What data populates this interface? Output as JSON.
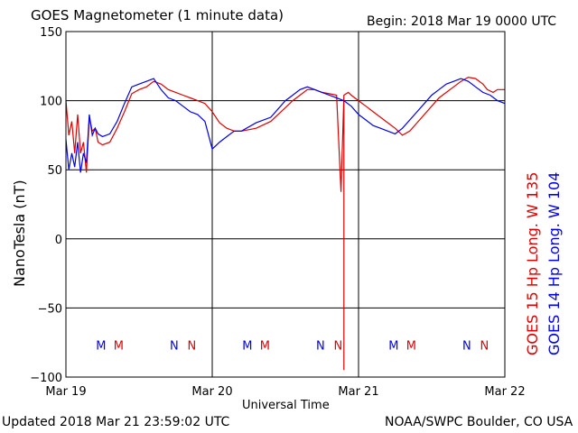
{
  "title": "GOES Magnetometer (1 minute data)",
  "begin": "Begin:  2018 Mar 19 0000 UTC",
  "updated": "Updated 2018 Mar 21 23:59:02 UTC",
  "credit": "NOAA/SWPC Boulder, CO USA",
  "chart_data": {
    "type": "line",
    "title": "GOES Magnetometer (1 minute data)",
    "xlabel": "Universal Time",
    "ylabel": "NanoTesla (nT)",
    "xlim": [
      0,
      3
    ],
    "ylim": [
      -100,
      150
    ],
    "yticks": [
      -100,
      -50,
      0,
      50,
      100,
      150
    ],
    "ytick_labels": [
      "−100",
      "−50",
      "0",
      "50",
      "100",
      "150"
    ],
    "xtick_labels": [
      "Mar 19",
      "Mar 20",
      "Mar 21",
      "Mar 22"
    ],
    "grid": true,
    "series": [
      {
        "name": "GOES 15 Hp  Long. W 135",
        "color": "#e00000",
        "x": [
          0,
          0.02,
          0.04,
          0.06,
          0.08,
          0.1,
          0.12,
          0.14,
          0.16,
          0.18,
          0.2,
          0.22,
          0.25,
          0.3,
          0.35,
          0.4,
          0.45,
          0.5,
          0.55,
          0.6,
          0.65,
          0.7,
          0.75,
          0.8,
          0.85,
          0.9,
          0.95,
          1.0,
          1.05,
          1.1,
          1.15,
          1.2,
          1.3,
          1.4,
          1.5,
          1.55,
          1.6,
          1.65,
          1.7,
          1.75,
          1.8,
          1.85,
          1.88,
          1.9,
          1.9,
          1.9,
          1.9,
          1.93,
          1.95,
          2.0,
          2.05,
          2.1,
          2.15,
          2.2,
          2.25,
          2.3,
          2.35,
          2.4,
          2.45,
          2.5,
          2.55,
          2.6,
          2.65,
          2.7,
          2.75,
          2.8,
          2.85,
          2.88,
          2.92,
          2.95,
          3.0
        ],
        "y": [
          100,
          75,
          85,
          62,
          90,
          62,
          70,
          48,
          88,
          78,
          80,
          70,
          68,
          70,
          80,
          92,
          105,
          108,
          110,
          114,
          112,
          108,
          106,
          104,
          102,
          100,
          98,
          92,
          84,
          80,
          78,
          78,
          80,
          85,
          95,
          100,
          104,
          108,
          108,
          106,
          105,
          104,
          34,
          104,
          -95,
          -68,
          104,
          106,
          104,
          100,
          96,
          92,
          88,
          84,
          80,
          75,
          78,
          84,
          90,
          96,
          102,
          106,
          110,
          114,
          117,
          116,
          112,
          108,
          106,
          108,
          108
        ]
      },
      {
        "name": "GOES 14 Hp  Long. W 104",
        "color": "#0000ee",
        "x": [
          0,
          0.02,
          0.04,
          0.06,
          0.08,
          0.1,
          0.12,
          0.14,
          0.16,
          0.18,
          0.2,
          0.22,
          0.25,
          0.3,
          0.35,
          0.4,
          0.45,
          0.5,
          0.55,
          0.6,
          0.65,
          0.7,
          0.75,
          0.8,
          0.85,
          0.9,
          0.95,
          1.0,
          1.05,
          1.1,
          1.15,
          1.2,
          1.3,
          1.4,
          1.5,
          1.55,
          1.6,
          1.65,
          1.7,
          1.75,
          1.8,
          1.85,
          1.9,
          1.95,
          2.0,
          2.05,
          2.1,
          2.15,
          2.2,
          2.25,
          2.3,
          2.35,
          2.4,
          2.45,
          2.5,
          2.55,
          2.6,
          2.65,
          2.7,
          2.75,
          2.8,
          2.85,
          2.9,
          2.95,
          3.0
        ],
        "y": [
          72,
          50,
          62,
          52,
          70,
          48,
          62,
          55,
          90,
          75,
          80,
          76,
          74,
          76,
          85,
          98,
          110,
          112,
          114,
          116,
          108,
          102,
          100,
          96,
          92,
          90,
          85,
          65,
          70,
          74,
          78,
          78,
          84,
          88,
          100,
          104,
          108,
          110,
          108,
          106,
          104,
          102,
          100,
          96,
          90,
          86,
          82,
          80,
          78,
          76,
          80,
          86,
          92,
          98,
          104,
          108,
          112,
          114,
          116,
          114,
          110,
          106,
          104,
          100,
          98
        ]
      }
    ],
    "markers": [
      {
        "label": "M",
        "x": 0.24,
        "color": "#0000ee"
      },
      {
        "label": "M",
        "x": 0.36,
        "color": "#e00000"
      },
      {
        "label": "N",
        "x": 0.74,
        "color": "#0000ee"
      },
      {
        "label": "N",
        "x": 0.86,
        "color": "#e00000"
      },
      {
        "label": "M",
        "x": 1.24,
        "color": "#0000ee"
      },
      {
        "label": "M",
        "x": 1.36,
        "color": "#e00000"
      },
      {
        "label": "N",
        "x": 1.74,
        "color": "#0000ee"
      },
      {
        "label": "N",
        "x": 1.86,
        "color": "#e00000"
      },
      {
        "label": "M",
        "x": 2.24,
        "color": "#0000ee"
      },
      {
        "label": "M",
        "x": 2.36,
        "color": "#e00000"
      },
      {
        "label": "N",
        "x": 2.74,
        "color": "#0000ee"
      },
      {
        "label": "N",
        "x": 2.86,
        "color": "#e00000"
      }
    ]
  }
}
